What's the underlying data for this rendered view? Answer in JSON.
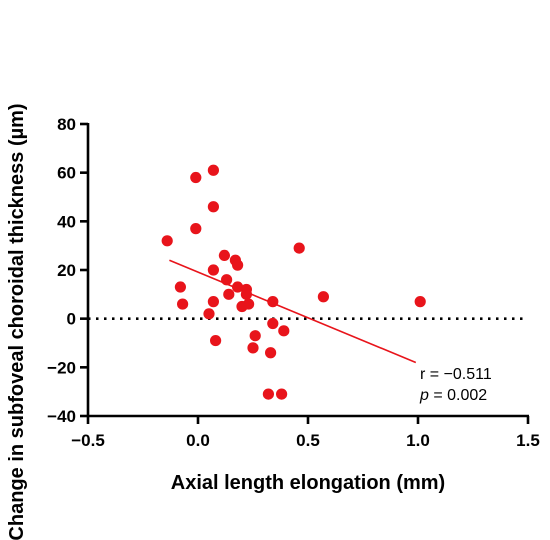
{
  "chart_data": {
    "type": "scatter",
    "title": "",
    "xlabel": "Axial length elongation (mm)",
    "ylabel": "Change in subfoveal choroidal thickness (µm)",
    "xlim": [
      -0.5,
      1.5
    ],
    "ylim": [
      -40,
      80
    ],
    "xticks": [
      -0.5,
      0.0,
      0.5,
      1.0,
      1.5
    ],
    "xtick_labels": [
      "−0.5",
      "0.0",
      "0.5",
      "1.0",
      "1.5"
    ],
    "yticks": [
      -40,
      -20,
      0,
      20,
      40,
      60,
      80
    ],
    "ytick_labels": [
      "−40",
      "−20",
      "0",
      "20",
      "40",
      "60",
      "80"
    ],
    "grid": false,
    "zero_reference_line": {
      "y": 0,
      "style": "dotted"
    },
    "marker_color": "#e8141b",
    "line_color": "#e8141b",
    "points": [
      {
        "x": -0.14,
        "y": 32
      },
      {
        "x": -0.08,
        "y": 13
      },
      {
        "x": -0.07,
        "y": 6
      },
      {
        "x": -0.01,
        "y": 58
      },
      {
        "x": -0.01,
        "y": 37
      },
      {
        "x": 0.05,
        "y": 2
      },
      {
        "x": 0.07,
        "y": 61
      },
      {
        "x": 0.07,
        "y": 46
      },
      {
        "x": 0.07,
        "y": 20
      },
      {
        "x": 0.07,
        "y": 7
      },
      {
        "x": 0.08,
        "y": -9
      },
      {
        "x": 0.12,
        "y": 26
      },
      {
        "x": 0.13,
        "y": 16
      },
      {
        "x": 0.14,
        "y": 10
      },
      {
        "x": 0.17,
        "y": 24
      },
      {
        "x": 0.18,
        "y": 22
      },
      {
        "x": 0.18,
        "y": 13
      },
      {
        "x": 0.2,
        "y": 5
      },
      {
        "x": 0.22,
        "y": 12
      },
      {
        "x": 0.22,
        "y": 10
      },
      {
        "x": 0.23,
        "y": 6
      },
      {
        "x": 0.25,
        "y": -12
      },
      {
        "x": 0.26,
        "y": -7
      },
      {
        "x": 0.32,
        "y": -31
      },
      {
        "x": 0.33,
        "y": -14
      },
      {
        "x": 0.34,
        "y": 7
      },
      {
        "x": 0.34,
        "y": -2
      },
      {
        "x": 0.38,
        "y": -31
      },
      {
        "x": 0.39,
        "y": -5
      },
      {
        "x": 0.46,
        "y": 29
      },
      {
        "x": 0.57,
        "y": 9
      },
      {
        "x": 1.01,
        "y": 7
      }
    ],
    "regression_line": {
      "x": [
        -0.13,
        0.99
      ],
      "y": [
        24,
        -18
      ]
    },
    "annotations": {
      "r_text": "r = −0.511",
      "p_symbol": "p",
      "p_value": " = 0.002"
    }
  }
}
